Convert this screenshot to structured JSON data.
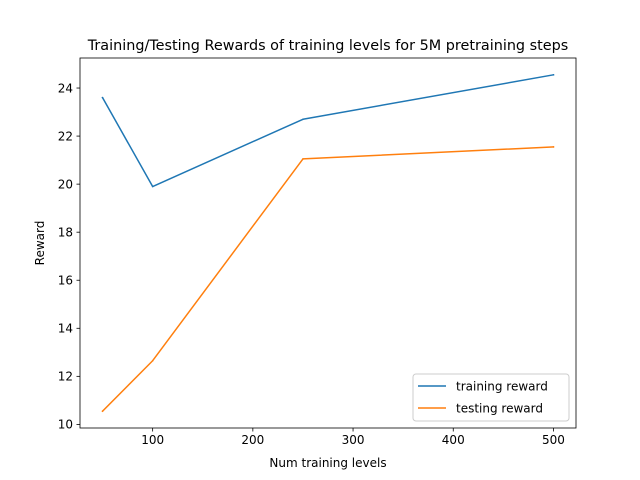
{
  "chart_data": {
    "type": "line",
    "title": "Training/Testing Rewards of training levels for 5M pretraining steps",
    "xlabel": "Num training levels",
    "ylabel": "Reward",
    "x": [
      50,
      100,
      250,
      500
    ],
    "xlim": [
      27.5,
      522.5
    ],
    "ylim": [
      9.85,
      25.25
    ],
    "xticks": [
      100,
      200,
      300,
      400,
      500
    ],
    "yticks": [
      10,
      12,
      14,
      16,
      18,
      20,
      22,
      24
    ],
    "grid": false,
    "legend_position": "lower right",
    "series": [
      {
        "name": "training reward",
        "color": "#1f77b4",
        "values": [
          23.6,
          19.9,
          22.7,
          24.55
        ]
      },
      {
        "name": "testing reward",
        "color": "#ff7f0e",
        "values": [
          10.55,
          12.65,
          21.05,
          21.55
        ]
      }
    ]
  }
}
